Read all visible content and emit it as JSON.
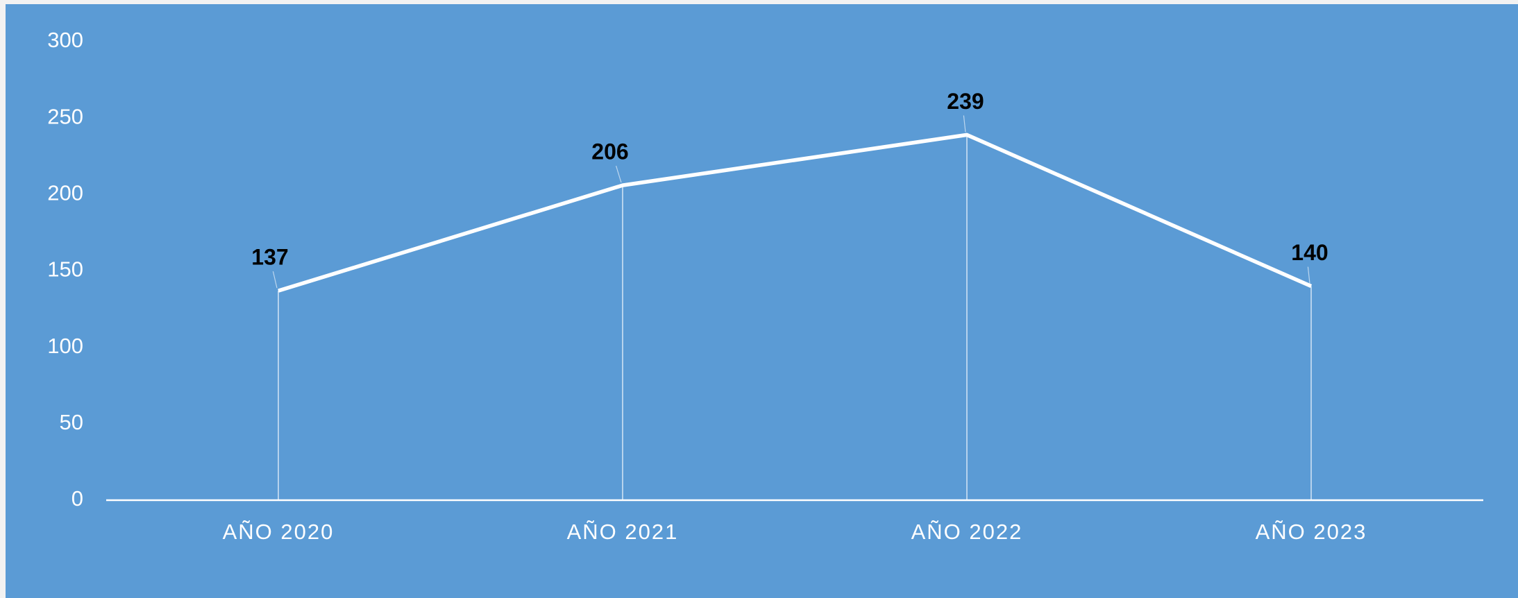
{
  "chart_data": {
    "type": "line",
    "categories": [
      "AÑO 2020",
      "AÑO 2021",
      "AÑO 2022",
      "AÑO 2023"
    ],
    "values": [
      137,
      206,
      239,
      140
    ],
    "color": "#ffffff",
    "ylim": [
      0,
      300
    ],
    "yticks": [
      0,
      50,
      100,
      150,
      200,
      250,
      300
    ],
    "grid": false,
    "drop_lines": true
  }
}
